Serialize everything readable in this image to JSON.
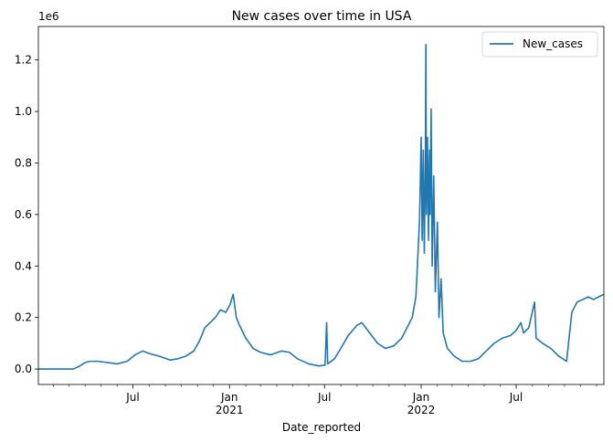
{
  "chart_data": {
    "type": "line",
    "title": "New cases over time in USA",
    "xlabel": "Date_reported",
    "ylabel": "",
    "y_scale_label": "1e6",
    "x_range": [
      "2020-01-03",
      "2022-12-15"
    ],
    "ylim": [
      -0.06,
      1.33
    ],
    "grid": false,
    "legend_position": "upper right",
    "line_color": "#1f77b4",
    "y_ticks": [
      {
        "value": 0.0,
        "label": "0.0"
      },
      {
        "value": 0.2,
        "label": "0.2"
      },
      {
        "value": 0.4,
        "label": "0.4"
      },
      {
        "value": 0.6,
        "label": "0.6"
      },
      {
        "value": 0.8,
        "label": "0.8"
      },
      {
        "value": 1.0,
        "label": "1.0"
      },
      {
        "value": 1.2,
        "label": "1.2"
      }
    ],
    "x_ticks": [
      {
        "date": "2020-07-01",
        "label": "Jul",
        "sublabel": ""
      },
      {
        "date": "2021-01-01",
        "label": "Jan",
        "sublabel": "2021"
      },
      {
        "date": "2021-07-01",
        "label": "Jul",
        "sublabel": ""
      },
      {
        "date": "2022-01-01",
        "label": "Jan",
        "sublabel": "2022"
      },
      {
        "date": "2022-07-01",
        "label": "Jul",
        "sublabel": ""
      }
    ],
    "x_minor_ticks": [
      "2020-02-01",
      "2020-03-01",
      "2020-04-01",
      "2020-05-01",
      "2020-06-01",
      "2020-08-01",
      "2020-09-01",
      "2020-10-01",
      "2020-11-01",
      "2020-12-01",
      "2021-02-01",
      "2021-03-01",
      "2021-04-01",
      "2021-05-01",
      "2021-06-01",
      "2021-08-01",
      "2021-09-01",
      "2021-10-01",
      "2021-11-01",
      "2021-12-01",
      "2022-02-01",
      "2022-03-01",
      "2022-04-01",
      "2022-05-01",
      "2022-06-01",
      "2022-08-01",
      "2022-09-01",
      "2022-10-01",
      "2022-11-01",
      "2022-12-01"
    ],
    "series": [
      {
        "name": "New_cases",
        "points": [
          [
            "2020-01-03",
            0.0
          ],
          [
            "2020-02-15",
            0.0
          ],
          [
            "2020-03-10",
            0.0
          ],
          [
            "2020-03-20",
            0.01
          ],
          [
            "2020-04-01",
            0.025
          ],
          [
            "2020-04-10",
            0.03
          ],
          [
            "2020-04-25",
            0.03
          ],
          [
            "2020-05-15",
            0.025
          ],
          [
            "2020-06-01",
            0.02
          ],
          [
            "2020-06-20",
            0.03
          ],
          [
            "2020-07-05",
            0.055
          ],
          [
            "2020-07-20",
            0.07
          ],
          [
            "2020-08-01",
            0.06
          ],
          [
            "2020-08-20",
            0.05
          ],
          [
            "2020-09-10",
            0.035
          ],
          [
            "2020-09-25",
            0.04
          ],
          [
            "2020-10-10",
            0.05
          ],
          [
            "2020-10-25",
            0.07
          ],
          [
            "2020-11-05",
            0.11
          ],
          [
            "2020-11-15",
            0.16
          ],
          [
            "2020-11-25",
            0.18
          ],
          [
            "2020-12-05",
            0.2
          ],
          [
            "2020-12-15",
            0.23
          ],
          [
            "2020-12-25",
            0.22
          ],
          [
            "2021-01-02",
            0.25
          ],
          [
            "2021-01-08",
            0.29
          ],
          [
            "2021-01-14",
            0.2
          ],
          [
            "2021-01-20",
            0.17
          ],
          [
            "2021-02-01",
            0.12
          ],
          [
            "2021-02-15",
            0.08
          ],
          [
            "2021-03-01",
            0.065
          ],
          [
            "2021-03-20",
            0.055
          ],
          [
            "2021-04-10",
            0.07
          ],
          [
            "2021-04-25",
            0.065
          ],
          [
            "2021-05-10",
            0.04
          ],
          [
            "2021-06-01",
            0.02
          ],
          [
            "2021-06-20",
            0.012
          ],
          [
            "2021-07-02",
            0.015
          ],
          [
            "2021-07-05",
            0.18
          ],
          [
            "2021-07-07",
            0.02
          ],
          [
            "2021-07-20",
            0.04
          ],
          [
            "2021-08-01",
            0.08
          ],
          [
            "2021-08-15",
            0.13
          ],
          [
            "2021-09-01",
            0.17
          ],
          [
            "2021-09-10",
            0.18
          ],
          [
            "2021-09-25",
            0.14
          ],
          [
            "2021-10-10",
            0.1
          ],
          [
            "2021-10-25",
            0.08
          ],
          [
            "2021-11-10",
            0.09
          ],
          [
            "2021-11-25",
            0.12
          ],
          [
            "2021-12-05",
            0.16
          ],
          [
            "2021-12-15",
            0.2
          ],
          [
            "2021-12-22",
            0.28
          ],
          [
            "2021-12-26",
            0.45
          ],
          [
            "2021-12-29",
            0.58
          ],
          [
            "2022-01-01",
            0.9
          ],
          [
            "2022-01-03",
            0.5
          ],
          [
            "2022-01-05",
            0.85
          ],
          [
            "2022-01-07",
            0.45
          ],
          [
            "2022-01-09",
            0.8
          ],
          [
            "2022-01-10",
            1.26
          ],
          [
            "2022-01-11",
            0.6
          ],
          [
            "2022-01-13",
            0.9
          ],
          [
            "2022-01-15",
            0.5
          ],
          [
            "2022-01-17",
            0.85
          ],
          [
            "2022-01-18",
            0.6
          ],
          [
            "2022-01-20",
            1.01
          ],
          [
            "2022-01-22",
            0.4
          ],
          [
            "2022-01-25",
            0.75
          ],
          [
            "2022-01-28",
            0.3
          ],
          [
            "2022-02-01",
            0.57
          ],
          [
            "2022-02-04",
            0.2
          ],
          [
            "2022-02-08",
            0.35
          ],
          [
            "2022-02-12",
            0.14
          ],
          [
            "2022-02-20",
            0.08
          ],
          [
            "2022-03-05",
            0.05
          ],
          [
            "2022-03-20",
            0.03
          ],
          [
            "2022-04-05",
            0.03
          ],
          [
            "2022-04-20",
            0.04
          ],
          [
            "2022-05-05",
            0.07
          ],
          [
            "2022-05-20",
            0.1
          ],
          [
            "2022-06-05",
            0.12
          ],
          [
            "2022-06-20",
            0.13
          ],
          [
            "2022-07-01",
            0.15
          ],
          [
            "2022-07-10",
            0.18
          ],
          [
            "2022-07-15",
            0.14
          ],
          [
            "2022-07-25",
            0.16
          ],
          [
            "2022-08-05",
            0.26
          ],
          [
            "2022-08-08",
            0.12
          ],
          [
            "2022-08-20",
            0.1
          ],
          [
            "2022-09-05",
            0.08
          ],
          [
            "2022-09-20",
            0.05
          ],
          [
            "2022-10-05",
            0.03
          ],
          [
            "2022-10-15",
            0.22
          ],
          [
            "2022-10-25",
            0.26
          ],
          [
            "2022-11-05",
            0.27
          ],
          [
            "2022-11-15",
            0.28
          ],
          [
            "2022-11-25",
            0.27
          ],
          [
            "2022-12-05",
            0.28
          ],
          [
            "2022-12-15",
            0.29
          ]
        ]
      }
    ]
  }
}
